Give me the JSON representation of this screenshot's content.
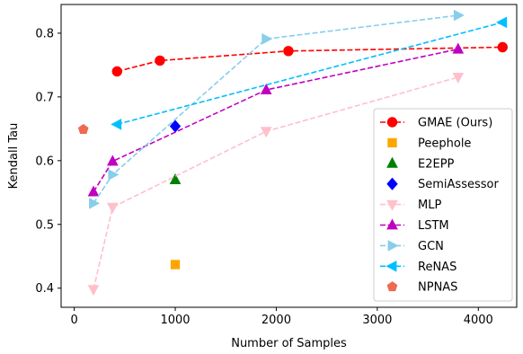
{
  "chart_data": {
    "type": "line",
    "title": "",
    "xlabel": "Number of Samples",
    "ylabel": "Kendall Tau",
    "xlim": [
      -130,
      4380
    ],
    "ylim": [
      0.37,
      0.845
    ],
    "xticks": [
      0,
      1000,
      2000,
      3000,
      4000
    ],
    "yticks": [
      0.4,
      0.5,
      0.6,
      0.7,
      0.8
    ],
    "xtick_labels": [
      "0",
      "1000",
      "2000",
      "3000",
      "4000"
    ],
    "ytick_labels": [
      "0.4",
      "0.5",
      "0.6",
      "0.7",
      "0.8"
    ],
    "grid": false,
    "legend_position": "lower-right",
    "series": [
      {
        "name": "GMAE (Ours)",
        "color": "#ff0000",
        "marker": "circle",
        "linestyle": "dashed",
        "x": [
          424,
          848,
          2120,
          4240
        ],
        "y": [
          0.74,
          0.757,
          0.772,
          0.778
        ]
      },
      {
        "name": "Peephole",
        "color": "#ffa500",
        "marker": "square",
        "linestyle": "none",
        "x": [
          1000
        ],
        "y": [
          0.437
        ]
      },
      {
        "name": "E2EPP",
        "color": "#008000",
        "marker": "triangle-up",
        "linestyle": "none",
        "x": [
          1000
        ],
        "y": [
          0.57
        ]
      },
      {
        "name": "SemiAssessor",
        "color": "#0000ff",
        "marker": "diamond",
        "linestyle": "none",
        "x": [
          1000
        ],
        "y": [
          0.654
        ]
      },
      {
        "name": "MLP",
        "color": "#ffc0cb",
        "marker": "triangle-down",
        "linestyle": "dashed",
        "x": [
          190,
          380,
          1900,
          3800
        ],
        "y": [
          0.398,
          0.527,
          0.646,
          0.731
        ]
      },
      {
        "name": "LSTM",
        "color": "#c000c0",
        "marker": "triangle-up",
        "linestyle": "dashed",
        "x": [
          190,
          380,
          1900,
          3800
        ],
        "y": [
          0.551,
          0.599,
          0.711,
          0.775
        ]
      },
      {
        "name": "GCN",
        "color": "#87ceeb",
        "marker": "triangle-right",
        "linestyle": "dashed",
        "x": [
          190,
          380,
          1900,
          3800
        ],
        "y": [
          0.533,
          0.578,
          0.791,
          0.828
        ]
      },
      {
        "name": "ReNAS",
        "color": "#00bfff",
        "marker": "triangle-left",
        "linestyle": "dashed",
        "x": [
          424,
          4240
        ],
        "y": [
          0.657,
          0.817
        ]
      },
      {
        "name": "NPNAS",
        "color": "#ee6a50",
        "marker": "pentagon",
        "linestyle": "none",
        "x": [
          90
        ],
        "y": [
          0.649
        ]
      }
    ]
  }
}
